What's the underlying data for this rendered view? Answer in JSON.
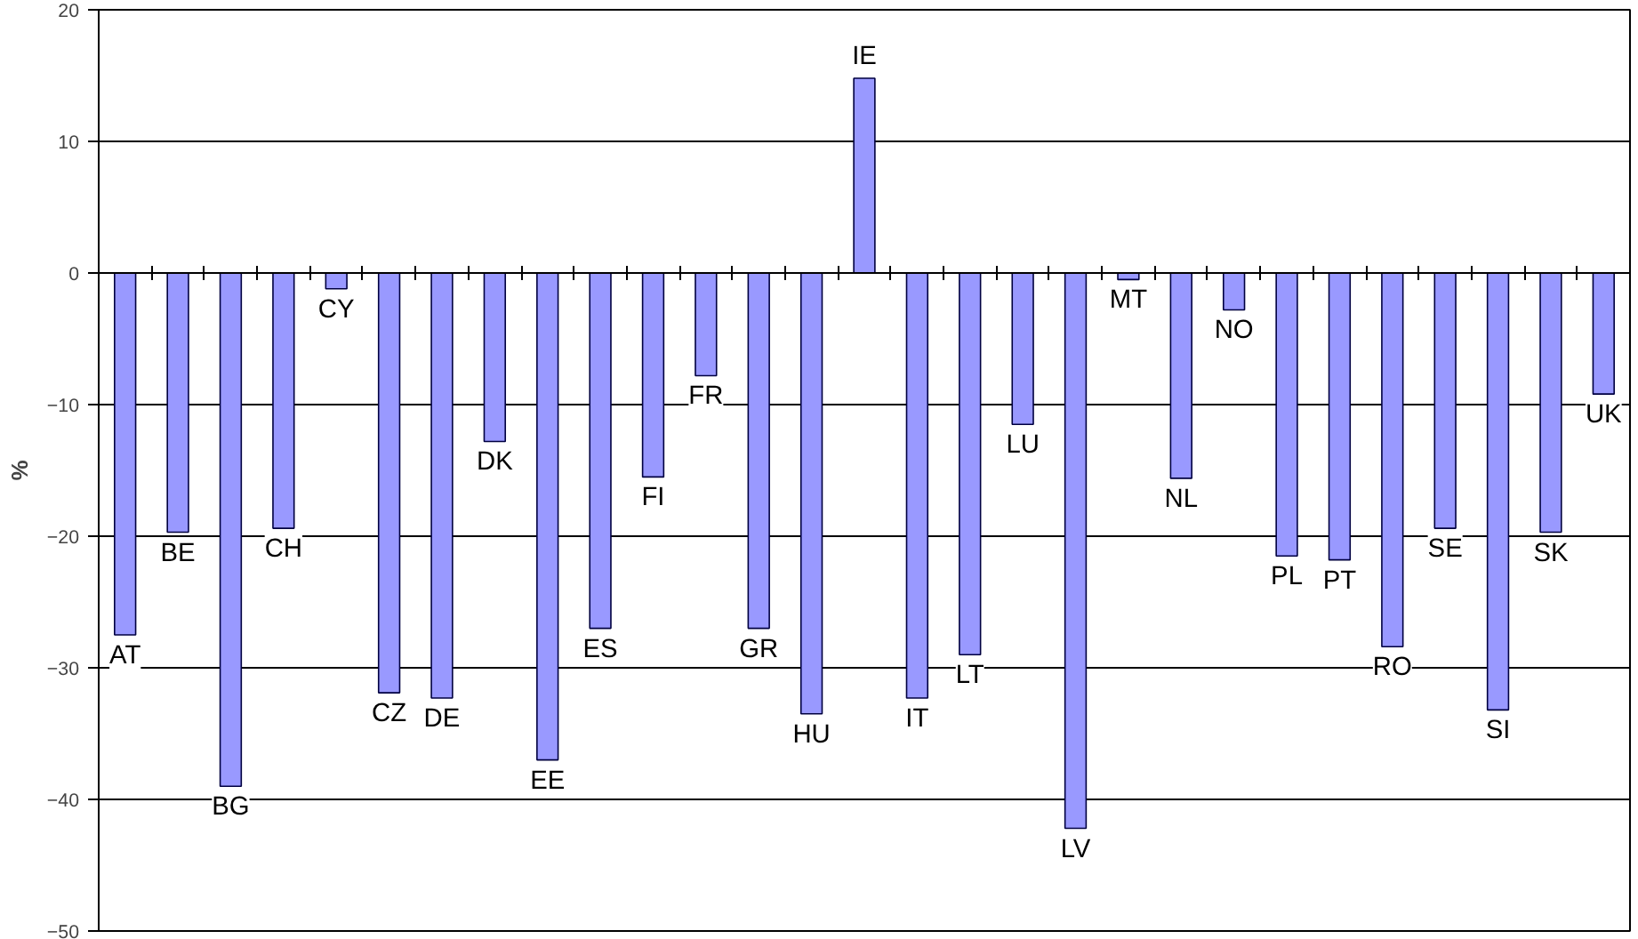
{
  "chart_data": {
    "type": "bar",
    "ylabel": "%",
    "categories": [
      "AT",
      "BE",
      "BG",
      "CH",
      "CY",
      "CZ",
      "DE",
      "DK",
      "EE",
      "ES",
      "FI",
      "FR",
      "GR",
      "HU",
      "IE",
      "IT",
      "LT",
      "LU",
      "LV",
      "MT",
      "NL",
      "NO",
      "PL",
      "PT",
      "RO",
      "SE",
      "SI",
      "SK",
      "UK"
    ],
    "values": [
      -27.5,
      -19.7,
      -39,
      -19.4,
      -1.2,
      -31.9,
      -32.3,
      -12.8,
      -37,
      -27,
      -15.5,
      -7.8,
      -27,
      -33.5,
      14.8,
      -32.3,
      -29,
      -11.5,
      -42.2,
      -0.5,
      -15.6,
      -2.8,
      -21.5,
      -21.8,
      -28.4,
      -19.4,
      -33.2,
      -19.7,
      -9.2
    ],
    "color": "#9999ff",
    "ylim": [
      -50,
      20
    ],
    "yticks": [
      -50,
      -40,
      -30,
      -20,
      -10,
      0,
      10,
      20
    ],
    "grid": "y"
  }
}
